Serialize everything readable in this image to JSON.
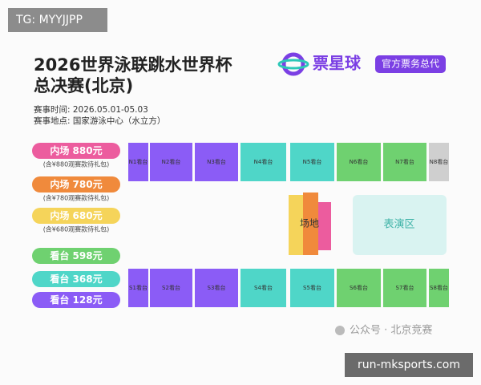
{
  "header": {
    "overlay_tag": "TG: MYYJJPP",
    "title_lines": [
      "2026世界泳联跳水世界杯",
      "总决赛(北京)"
    ],
    "brand": "票星球",
    "brand_tag": "官方票务总代",
    "event_time": "赛事时间:  2026.05.01-05.03",
    "event_place": "赛事地点:  国家游泳中心（水立方）"
  },
  "prices": [
    {
      "label": "内场 880元",
      "note": "(含¥880观赛款待礼包)"
    },
    {
      "label": "内场 780元",
      "note": "(含¥780观赛款待礼包)"
    },
    {
      "label": "内场 680元",
      "note": "(含¥680观赛款待礼包)"
    },
    {
      "label": "看台 598元"
    },
    {
      "label": "看台 368元"
    },
    {
      "label": "看台 128元"
    }
  ],
  "seat_map": {
    "north": [
      "N1看台",
      "N2看台",
      "N3看台",
      "N4看台",
      "N5看台",
      "N6看台",
      "N7看台",
      "N8看台"
    ],
    "south": [
      "S1看台",
      "S2看台",
      "S3看台",
      "S4看台",
      "S5看台",
      "S6看台",
      "S7看台",
      "S8看台"
    ],
    "field": "场地",
    "stage": "表演区"
  },
  "footer": {
    "watermark": "公众号 · 北京竞赛",
    "site": "run-mksports.com"
  }
}
